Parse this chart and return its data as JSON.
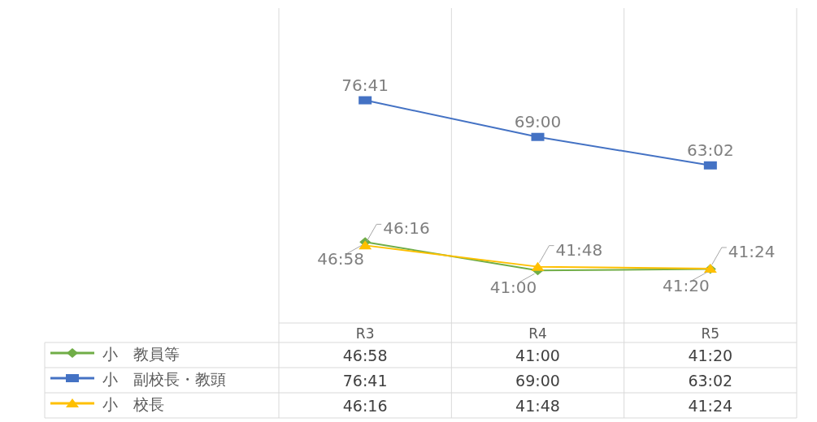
{
  "chart_data": {
    "type": "line",
    "categories": [
      "R3",
      "R4",
      "R5"
    ],
    "ylim": [
      30,
      96
    ],
    "grid": "x",
    "legend": "bottom",
    "series": [
      {
        "name": "小　教員等",
        "color": "#70ad47",
        "marker": "diamond",
        "values": [
          46.967,
          41,
          41.333
        ],
        "value_labels": [
          "46:58",
          "41:00",
          "41:20"
        ]
      },
      {
        "name": "小　副校長・教頭",
        "color": "#4472c4",
        "marker": "square",
        "values": [
          76.683,
          69,
          63.033
        ],
        "value_labels": [
          "76:41",
          "69:00",
          "63:02"
        ]
      },
      {
        "name": "小　校長",
        "color": "#ffc000",
        "marker": "triangle",
        "values": [
          46.267,
          41.8,
          41.4
        ],
        "value_labels": [
          "46:16",
          "41:48",
          "41:24"
        ]
      }
    ]
  }
}
